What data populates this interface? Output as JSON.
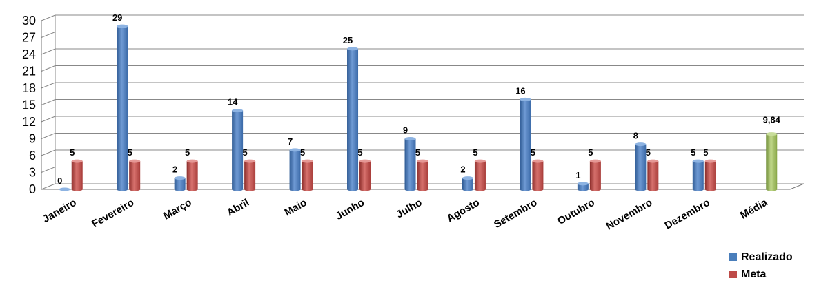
{
  "chart_data": {
    "type": "bar",
    "categories": [
      "Janeiro",
      "Fevereiro",
      "Março",
      "Abril",
      "Maio",
      "Junho",
      "Julho",
      "Agosto",
      "Setembro",
      "Outubro",
      "Novembro",
      "Dezembro",
      "Média"
    ],
    "series": [
      {
        "name": "Realizado",
        "color": "#4a7ebb",
        "values": [
          0,
          29,
          2,
          14,
          7,
          25,
          9,
          2,
          16,
          1,
          8,
          5,
          null
        ],
        "labels": [
          "0",
          "29",
          "2",
          "14",
          "7",
          "25",
          "9",
          "2",
          "16",
          "1",
          "8",
          "5",
          ""
        ]
      },
      {
        "name": "Meta",
        "color": "#be4b48",
        "values": [
          5,
          5,
          5,
          5,
          5,
          5,
          5,
          5,
          5,
          5,
          5,
          5,
          null
        ],
        "labels": [
          "5",
          "5",
          "5",
          "5",
          "5",
          "5",
          "5",
          "5",
          "5",
          "5",
          "5",
          "5",
          ""
        ]
      }
    ],
    "media": {
      "value": 9.84,
      "label": "9,84",
      "color": "#9bbb59"
    },
    "yticks": [
      "0",
      "3",
      "6",
      "9",
      "12",
      "15",
      "18",
      "21",
      "24",
      "27",
      "30"
    ],
    "ylim": [
      0,
      30
    ],
    "grid": true,
    "legend_position": "bottom-right",
    "title": "",
    "xlabel": "",
    "ylabel": ""
  }
}
